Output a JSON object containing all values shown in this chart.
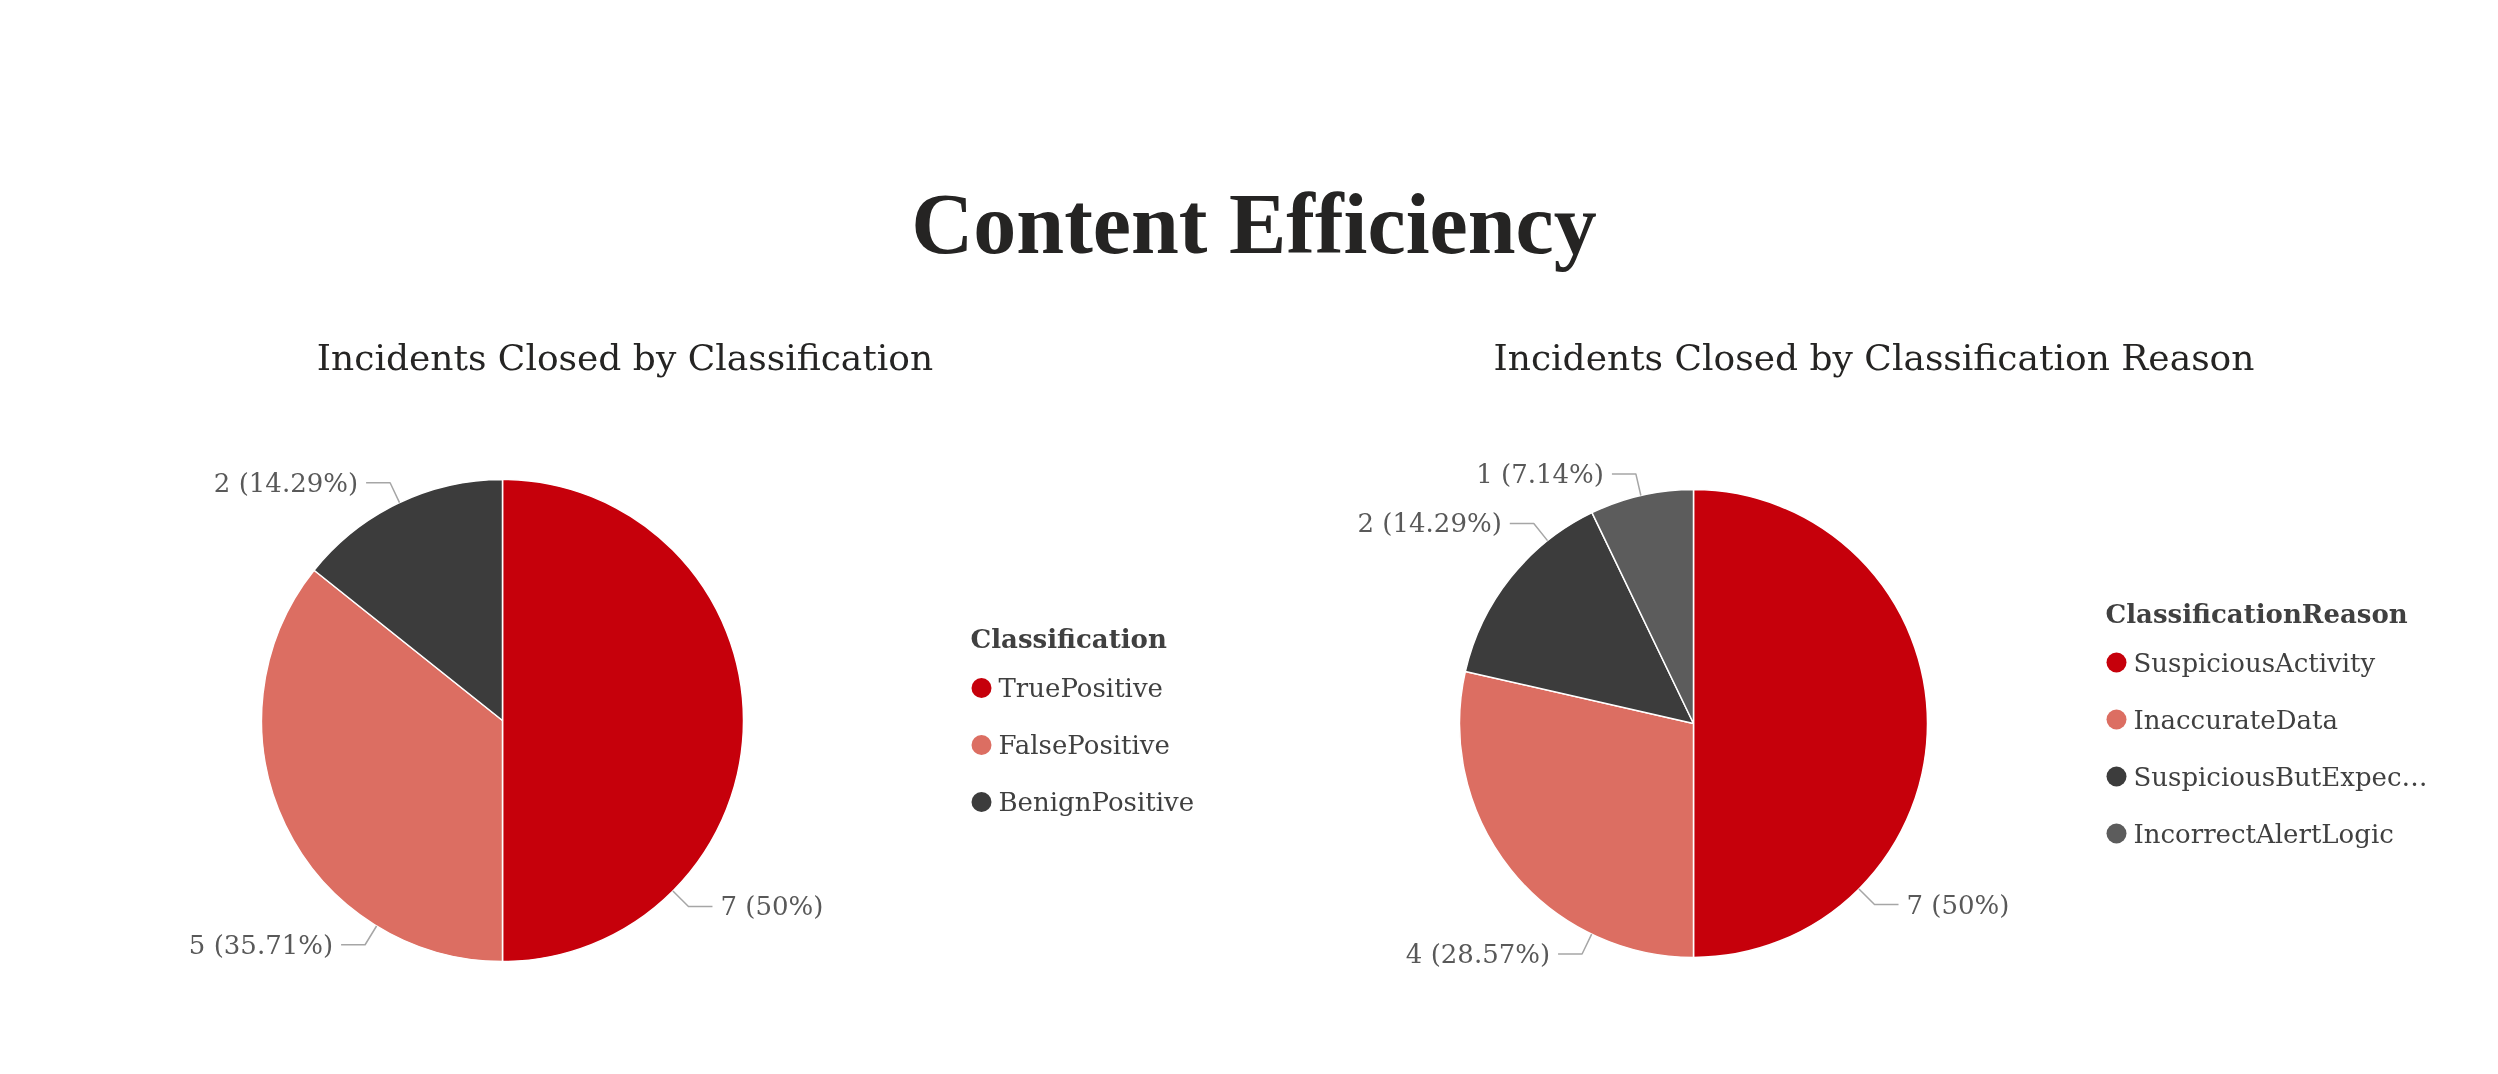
{
  "chart_data": [
    {
      "type": "pie",
      "title": "Incidents Closed by Classification",
      "annotations": [
        "Content Efficiency"
      ],
      "legend_title": "Classification",
      "legend": "right",
      "categories": [
        "TruePositive",
        "FalsePositive",
        "BenignPositive"
      ],
      "values": [
        7,
        5,
        2
      ],
      "colors": [
        "#c6000b",
        "#dc6e62",
        "#3c3c3c"
      ],
      "value_labels": [
        "7 (50%)",
        "5 (35.71%)",
        "2 (14.29%)"
      ]
    },
    {
      "type": "pie",
      "title": "Incidents Closed by Classification Reason",
      "legend_title": "ClassificationReason",
      "legend": "right",
      "categories": [
        "SuspiciousActivity",
        "InaccurateData",
        "SuspiciousButExpec…",
        "IncorrectAlertLogic"
      ],
      "values": [
        7,
        4,
        2,
        1
      ],
      "colors": [
        "#c6000b",
        "#dc6e62",
        "#3c3c3c",
        "#5c5c5c"
      ],
      "value_labels": [
        "7 (50%)",
        "4 (28.57%)",
        "2 (14.29%)",
        "1 (7.14%)"
      ]
    }
  ]
}
